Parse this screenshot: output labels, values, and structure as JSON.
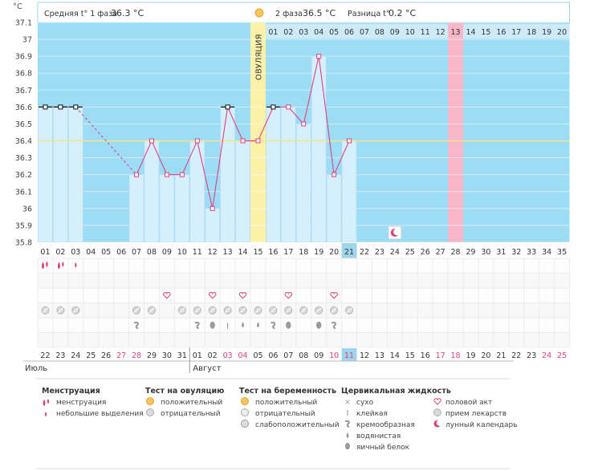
{
  "header": {
    "unit": "°C",
    "phase1_label": "Средняя t° 1 фаза",
    "phase1_value": "36.3 °C",
    "phase2_label": "2 фаза",
    "phase2_value": "36.5 °C",
    "diff_label": "Разница t°",
    "diff_value": "0.2 °C"
  },
  "ovulation_label": "ОВУЛЯЦИЯ",
  "chart_data": {
    "type": "line",
    "title": "",
    "ylabel": "°C",
    "ylim": [
      35.8,
      37.1
    ],
    "yticks": [
      "37.1",
      "37",
      "36.9",
      "36.8",
      "36.7",
      "36.6",
      "36.5",
      "36.4",
      "36.3",
      "36.2",
      "36.1",
      "36",
      "35.9",
      "35.8"
    ],
    "cycle_days": [
      "01",
      "02",
      "03",
      "04",
      "05",
      "06",
      "07",
      "08",
      "09",
      "10",
      "11",
      "12",
      "13",
      "14",
      "15",
      "16",
      "17",
      "18",
      "19",
      "20",
      "21",
      "22",
      "23",
      "24",
      "25",
      "26",
      "27",
      "28",
      "29",
      "30",
      "31",
      "32",
      "33",
      "34",
      "35"
    ],
    "temperatures": [
      36.6,
      36.6,
      36.6,
      null,
      null,
      null,
      36.2,
      36.4,
      36.2,
      36.2,
      36.4,
      36.0,
      36.6,
      36.4,
      36.4,
      36.6,
      36.6,
      36.5,
      36.9,
      36.2,
      36.4,
      null,
      null,
      null,
      null,
      null,
      null,
      null,
      null,
      null,
      null,
      null,
      null,
      null,
      null
    ],
    "coverline": 36.4,
    "ovulation_day": 15,
    "current_day": 21,
    "predicted_period_day": 28,
    "moon_day": 24,
    "phase2_days": [
      "01",
      "02",
      "03",
      "04",
      "05",
      "06",
      "07",
      "08",
      "09",
      "10",
      "11",
      "12",
      "13",
      "14",
      "15",
      "16",
      "17",
      "18",
      "19",
      "20"
    ],
    "highlight_phase2_day": "13"
  },
  "rows": {
    "menstruation": [
      3,
      2,
      1,
      0,
      0,
      0,
      0,
      0,
      0,
      0,
      0,
      0,
      0,
      0,
      0,
      0,
      0,
      0,
      0,
      0,
      0,
      0,
      0,
      0,
      0,
      0,
      0,
      0,
      0,
      0,
      0,
      0,
      0,
      0,
      0
    ],
    "intercourse_days": [
      9,
      12,
      14,
      17,
      20
    ],
    "pill_days": [
      1,
      2,
      3,
      7,
      8,
      10,
      11,
      12,
      13,
      14,
      15,
      16,
      17,
      18,
      19,
      20,
      21
    ],
    "fluid": [
      "",
      "",
      "",
      "",
      "",
      "",
      "cream",
      "",
      "",
      "",
      "cream",
      "egg",
      "sticky",
      "water",
      "water",
      "cream",
      "egg",
      "",
      "egg",
      "cream",
      "",
      "",
      "",
      "",
      "",
      "",
      "",
      "",
      "",
      "",
      "",
      "",
      "",
      "",
      ""
    ]
  },
  "dates": {
    "labels": [
      "22",
      "23",
      "24",
      "25",
      "26",
      "27",
      "28",
      "29",
      "30",
      "31",
      "01",
      "02",
      "03",
      "04",
      "05",
      "06",
      "07",
      "08",
      "09",
      "10",
      "11",
      "12",
      "13",
      "14",
      "15",
      "16",
      "17",
      "18",
      "19",
      "20",
      "21",
      "22",
      "23",
      "24",
      "25"
    ],
    "weekend": [
      false,
      false,
      false,
      false,
      false,
      true,
      true,
      false,
      false,
      false,
      false,
      false,
      true,
      true,
      false,
      false,
      false,
      false,
      false,
      true,
      true,
      false,
      false,
      false,
      false,
      false,
      true,
      true,
      false,
      false,
      false,
      false,
      false,
      true,
      true
    ],
    "month1": "Июль",
    "month2": "Август"
  },
  "legend": {
    "menstruation": {
      "title": "Менструация",
      "items": [
        "менструация",
        "небольшие выделения"
      ]
    },
    "ovulation_test": {
      "title": "Тест на овуляцию",
      "items": [
        "положительный",
        "отрицательный"
      ]
    },
    "pregnancy_test": {
      "title": "Тест на беременность",
      "items": [
        "положительный",
        "отрицательный",
        "слабоположительный"
      ]
    },
    "cervical_fluid": {
      "title": "Цервикальная жидкость",
      "items": [
        "сухо",
        "клейкая",
        "кремообразная",
        "водянистая",
        "яичный белок"
      ]
    },
    "other": {
      "items": [
        "половой акт",
        "прием лекарств",
        "лунный календарь"
      ]
    }
  },
  "colors": {
    "sky": "#9ddcf5",
    "bar": "#d6effc",
    "bar_edge": "#b5ddf2",
    "line": "#e0407f",
    "coverline": "#f1e48e",
    "ovulation": "#fdf1a8",
    "predicted": "#f7b6c9",
    "weekend": "#e0407f"
  }
}
